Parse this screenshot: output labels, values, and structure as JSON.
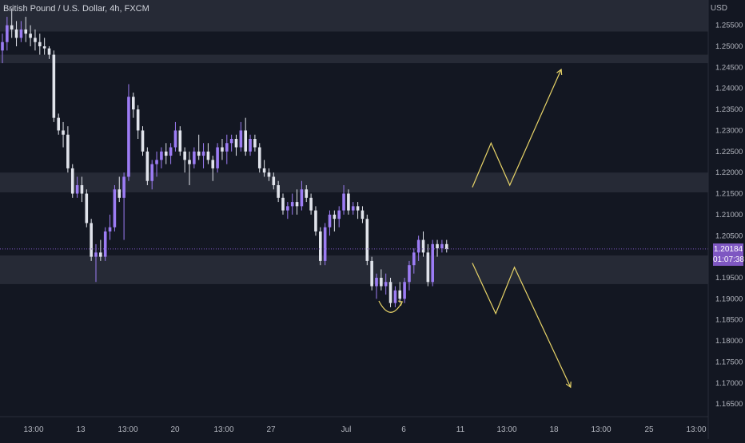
{
  "header": {
    "symbol_title": "British Pound / U.S. Dollar, 4h, FXCM",
    "currency": "USD"
  },
  "price_tag": {
    "price": "1.20184",
    "countdown": "01:07:38"
  },
  "colors": {
    "background": "#131722",
    "zone": "#2a2e39",
    "bull_candle": "#9c7cf4",
    "bear_candle": "#e0e3eb",
    "annotation": "#e8d468",
    "price_line": "#7e57c2",
    "axis_text": "#b2b5be"
  },
  "chart_data": {
    "type": "candlestick",
    "title": "British Pound / U.S. Dollar, 4h, FXCM",
    "y_axis": {
      "unit": "USD",
      "ylim": [
        1.162,
        1.261
      ],
      "ticks": [
        "1.25500",
        "1.25000",
        "1.24500",
        "1.24000",
        "1.23500",
        "1.23000",
        "1.22500",
        "1.22000",
        "1.21500",
        "1.21000",
        "1.20500",
        "1.20000",
        "1.19500",
        "1.19000",
        "1.18500",
        "1.18000",
        "1.17500",
        "1.17000",
        "1.16500"
      ]
    },
    "x_axis": {
      "ticks": [
        "13:00",
        "13",
        "13:00",
        "20",
        "13:00",
        "27",
        "Jul",
        "6",
        "11",
        "13:00",
        "18",
        "13:00",
        "25",
        "13:00"
      ]
    },
    "current_price": 1.20184,
    "zones": [
      {
        "low": 1.2535,
        "high": 1.261
      },
      {
        "low": 1.246,
        "high": 1.248
      },
      {
        "low": 1.2153,
        "high": 1.22
      },
      {
        "low": 1.1935,
        "high": 1.2003
      }
    ],
    "candles": [
      [
        1.249,
        1.253,
        1.246,
        1.251
      ],
      [
        1.251,
        1.257,
        1.249,
        1.255
      ],
      [
        1.255,
        1.259,
        1.252,
        1.254
      ],
      [
        1.254,
        1.256,
        1.25,
        1.252
      ],
      [
        1.252,
        1.256,
        1.251,
        1.254
      ],
      [
        1.254,
        1.257,
        1.251,
        1.253
      ],
      [
        1.253,
        1.255,
        1.25,
        1.252
      ],
      [
        1.252,
        1.254,
        1.249,
        1.251
      ],
      [
        1.251,
        1.253,
        1.248,
        1.25
      ],
      [
        1.25,
        1.252,
        1.248,
        1.2495
      ],
      [
        1.2495,
        1.25,
        1.247,
        1.248
      ],
      [
        1.248,
        1.249,
        1.232,
        1.233
      ],
      [
        1.233,
        1.234,
        1.229,
        1.23
      ],
      [
        1.23,
        1.232,
        1.226,
        1.229
      ],
      [
        1.229,
        1.231,
        1.22,
        1.221
      ],
      [
        1.221,
        1.222,
        1.214,
        1.215
      ],
      [
        1.215,
        1.219,
        1.214,
        1.217
      ],
      [
        1.217,
        1.219,
        1.213,
        1.215
      ],
      [
        1.215,
        1.216,
        1.207,
        1.208
      ],
      [
        1.208,
        1.209,
        1.199,
        1.2
      ],
      [
        1.2,
        1.203,
        1.194,
        1.201
      ],
      [
        1.201,
        1.204,
        1.199,
        1.2
      ],
      [
        1.2,
        1.207,
        1.199,
        1.206
      ],
      [
        1.206,
        1.21,
        1.204,
        1.207
      ],
      [
        1.207,
        1.217,
        1.206,
        1.216
      ],
      [
        1.216,
        1.219,
        1.213,
        1.214
      ],
      [
        1.214,
        1.22,
        1.204,
        1.219
      ],
      [
        1.219,
        1.241,
        1.218,
        1.238
      ],
      [
        1.238,
        1.239,
        1.233,
        1.235
      ],
      [
        1.235,
        1.236,
        1.228,
        1.23
      ],
      [
        1.23,
        1.231,
        1.224,
        1.225
      ],
      [
        1.225,
        1.226,
        1.217,
        1.218
      ],
      [
        1.218,
        1.223,
        1.216,
        1.222
      ],
      [
        1.222,
        1.225,
        1.219,
        1.223
      ],
      [
        1.223,
        1.226,
        1.221,
        1.225
      ],
      [
        1.225,
        1.227,
        1.222,
        1.224
      ],
      [
        1.224,
        1.227,
        1.222,
        1.226
      ],
      [
        1.226,
        1.232,
        1.225,
        1.23
      ],
      [
        1.23,
        1.231,
        1.224,
        1.225
      ],
      [
        1.225,
        1.226,
        1.22,
        1.223
      ],
      [
        1.223,
        1.225,
        1.217,
        1.222
      ],
      [
        1.222,
        1.226,
        1.221,
        1.225
      ],
      [
        1.225,
        1.229,
        1.223,
        1.224
      ],
      [
        1.224,
        1.227,
        1.221,
        1.225
      ],
      [
        1.225,
        1.227,
        1.222,
        1.223
      ],
      [
        1.223,
        1.224,
        1.218,
        1.221
      ],
      [
        1.221,
        1.227,
        1.22,
        1.226
      ],
      [
        1.226,
        1.228,
        1.223,
        1.225
      ],
      [
        1.225,
        1.229,
        1.222,
        1.227
      ],
      [
        1.227,
        1.229,
        1.225,
        1.228
      ],
      [
        1.228,
        1.229,
        1.224,
        1.226
      ],
      [
        1.226,
        1.232,
        1.225,
        1.23
      ],
      [
        1.23,
        1.233,
        1.224,
        1.225
      ],
      [
        1.225,
        1.229,
        1.224,
        1.228
      ],
      [
        1.228,
        1.229,
        1.225,
        1.226
      ],
      [
        1.226,
        1.227,
        1.22,
        1.221
      ],
      [
        1.221,
        1.223,
        1.219,
        1.22
      ],
      [
        1.22,
        1.221,
        1.218,
        1.219
      ],
      [
        1.219,
        1.22,
        1.216,
        1.217
      ],
      [
        1.217,
        1.218,
        1.213,
        1.214
      ],
      [
        1.214,
        1.215,
        1.21,
        1.211
      ],
      [
        1.211,
        1.213,
        1.209,
        1.212
      ],
      [
        1.212,
        1.215,
        1.21,
        1.213
      ],
      [
        1.213,
        1.216,
        1.21,
        1.212
      ],
      [
        1.212,
        1.218,
        1.211,
        1.216
      ],
      [
        1.216,
        1.217,
        1.213,
        1.214
      ],
      [
        1.214,
        1.215,
        1.21,
        1.211
      ],
      [
        1.211,
        1.212,
        1.205,
        1.206
      ],
      [
        1.206,
        1.207,
        1.198,
        1.199
      ],
      [
        1.199,
        1.208,
        1.198,
        1.207
      ],
      [
        1.207,
        1.211,
        1.205,
        1.21
      ],
      [
        1.21,
        1.211,
        1.206,
        1.209
      ],
      [
        1.209,
        1.212,
        1.207,
        1.211
      ],
      [
        1.211,
        1.217,
        1.21,
        1.215
      ],
      [
        1.215,
        1.216,
        1.21,
        1.211
      ],
      [
        1.211,
        1.213,
        1.21,
        1.212
      ],
      [
        1.212,
        1.213,
        1.209,
        1.211
      ],
      [
        1.211,
        1.212,
        1.208,
        1.209
      ],
      [
        1.209,
        1.21,
        1.198,
        1.199
      ],
      [
        1.199,
        1.2,
        1.192,
        1.193
      ],
      [
        1.193,
        1.196,
        1.19,
        1.195
      ],
      [
        1.195,
        1.197,
        1.192,
        1.193
      ],
      [
        1.193,
        1.196,
        1.191,
        1.194
      ],
      [
        1.194,
        1.195,
        1.188,
        1.189
      ],
      [
        1.189,
        1.193,
        1.188,
        1.192
      ],
      [
        1.192,
        1.194,
        1.189,
        1.19
      ],
      [
        1.19,
        1.195,
        1.189,
        1.194
      ],
      [
        1.194,
        1.199,
        1.192,
        1.198
      ],
      [
        1.198,
        1.202,
        1.196,
        1.201
      ],
      [
        1.201,
        1.205,
        1.199,
        1.204
      ],
      [
        1.204,
        1.206,
        1.2,
        1.201
      ],
      [
        1.201,
        1.203,
        1.193,
        1.194
      ],
      [
        1.194,
        1.204,
        1.193,
        1.203
      ],
      [
        1.203,
        1.204,
        1.2,
        1.202
      ],
      [
        1.202,
        1.204,
        1.201,
        1.203
      ],
      [
        1.203,
        1.204,
        1.201,
        1.2018
      ]
    ],
    "annotations": [
      {
        "kind": "curve",
        "points": [
          [
            -14.5,
            1.1895
          ],
          [
            -9.5,
            1.1893
          ]
        ]
      },
      {
        "kind": "zigzag-up",
        "points": [
          [
            5.5,
            1.2165
          ],
          [
            9.5,
            1.227
          ],
          [
            13.5,
            1.217
          ],
          [
            24.5,
            1.2445
          ]
        ]
      },
      {
        "kind": "zigzag-down",
        "points": [
          [
            5.5,
            1.1985
          ],
          [
            10.5,
            1.1865
          ],
          [
            14.5,
            1.1975
          ],
          [
            26.5,
            1.169
          ]
        ]
      }
    ]
  }
}
